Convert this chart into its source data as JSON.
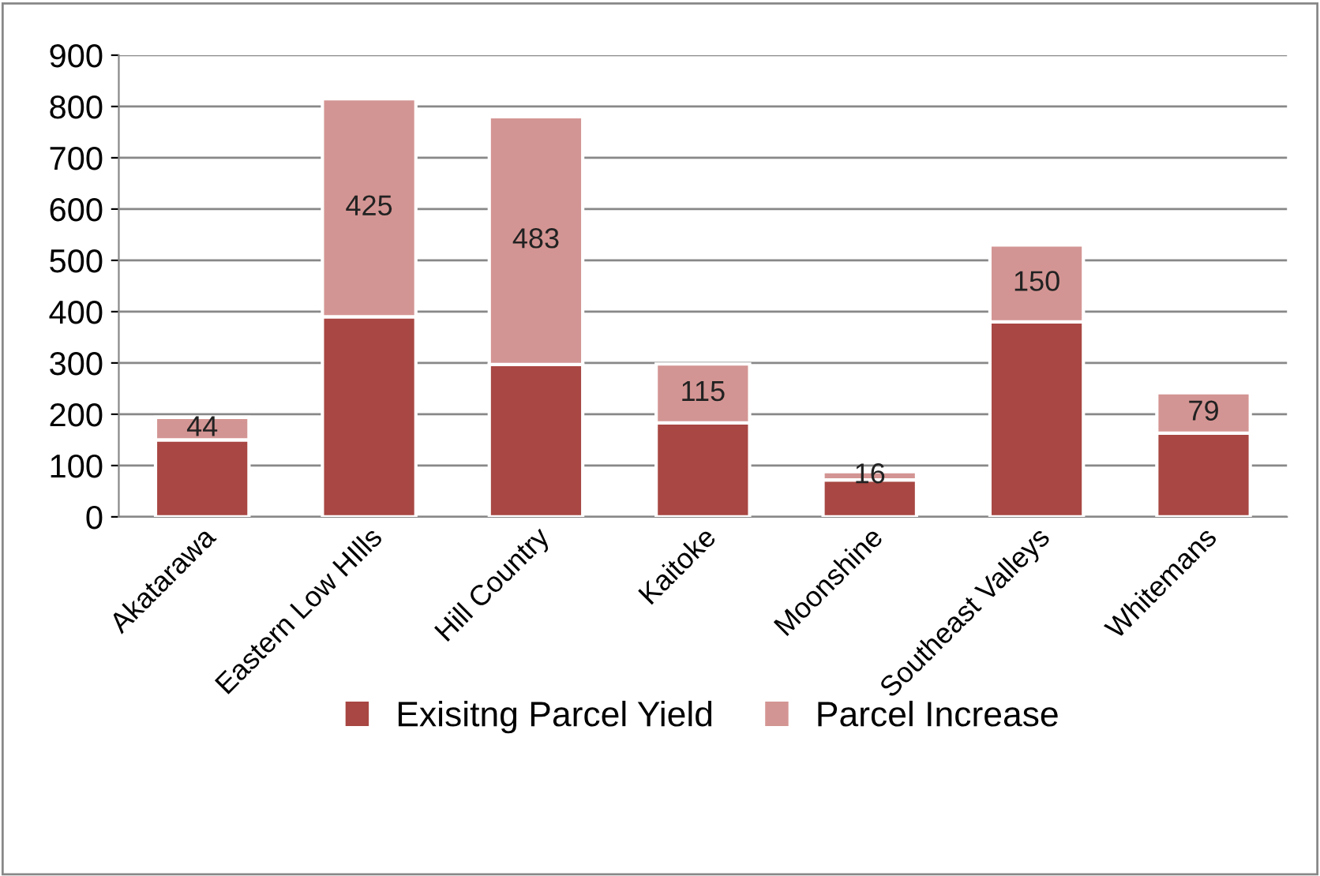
{
  "chart_data": {
    "type": "bar",
    "stacked": true,
    "categories": [
      "Akatarawa",
      "Eastern Low HIlls",
      "Hill Country",
      "Kaitoke",
      "Moonshine",
      "Southeast Valleys",
      "Whitemans"
    ],
    "series": [
      {
        "name": "Exisitng Parcel Yield",
        "color": "#a84743",
        "values": [
          150,
          390,
          297,
          183,
          72,
          380,
          163
        ]
      },
      {
        "name": "Parcel Increase",
        "color": "#d39593",
        "values": [
          44,
          425,
          483,
          115,
          16,
          150,
          79
        ],
        "value_labels": [
          "44",
          "425",
          "483",
          "115",
          "16",
          "150",
          "79"
        ]
      }
    ],
    "ylim": [
      0,
      900
    ],
    "yticks": [
      0,
      100,
      200,
      300,
      400,
      500,
      600,
      700,
      800,
      900
    ],
    "grid": "y",
    "legend": "bottom"
  }
}
